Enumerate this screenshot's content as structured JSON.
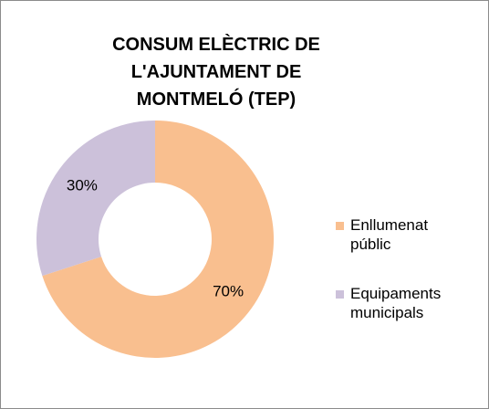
{
  "chart_data": {
    "type": "donut",
    "title": "CONSUM ELÈCTRIC DE L'AJUNTAMENT DE MONTMELÓ (TEP)",
    "categories": [
      "Enllumenat públic",
      "Equipaments municipals"
    ],
    "values": [
      70,
      30
    ],
    "value_labels": [
      "70%",
      "30%"
    ],
    "colors": [
      "#f9bf8f",
      "#ccc1da"
    ],
    "legend": "right"
  }
}
